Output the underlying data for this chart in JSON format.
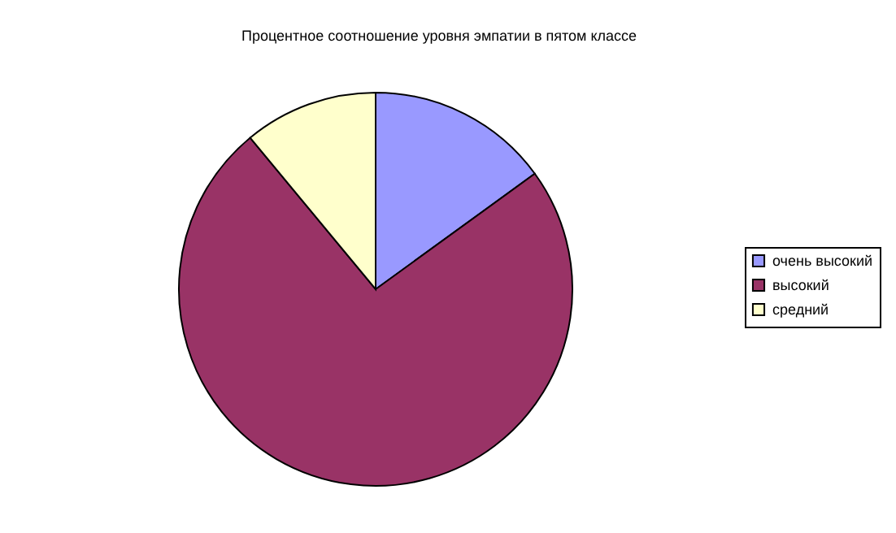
{
  "chart_data": {
    "type": "pie",
    "title": "Процентное соотношение уровня эмпатии в пятом классе",
    "categories": [
      "очень высокий",
      "высокий",
      "средний"
    ],
    "values": [
      15,
      74,
      11
    ],
    "colors": [
      "#9999ff",
      "#993366",
      "#ffffcc"
    ],
    "legend": "right"
  }
}
